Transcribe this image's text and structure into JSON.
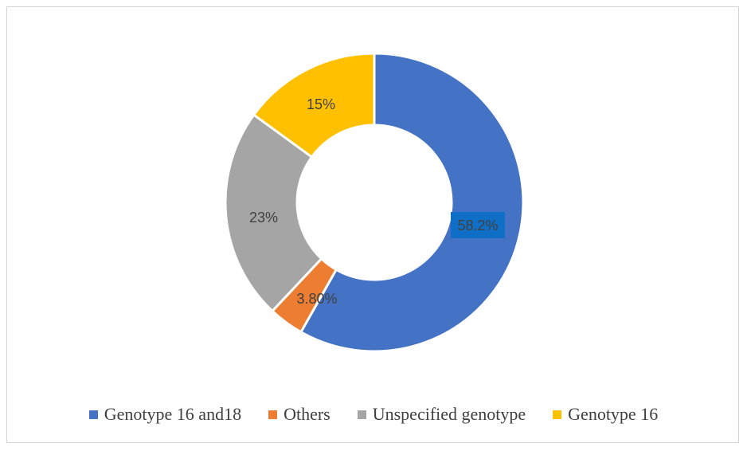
{
  "chart_data": {
    "type": "pie",
    "variant": "donut",
    "title": "",
    "categories": [
      "Genotype 16 and18",
      "Others",
      "Unspecified genotype",
      "Genotype 16"
    ],
    "values": [
      58.2,
      3.8,
      23,
      15
    ],
    "labels": [
      "58.2%",
      "3.80%",
      "23%",
      "15%"
    ],
    "colors": [
      "#4472c4",
      "#ed7d31",
      "#a5a5a5",
      "#ffc000"
    ],
    "highlighted_label": {
      "index": 0,
      "background": "#0f6fc6",
      "text_color": "#2a2a2a"
    },
    "start_angle": "12 o'clock",
    "direction": "clockwise",
    "legend": "bottom"
  }
}
